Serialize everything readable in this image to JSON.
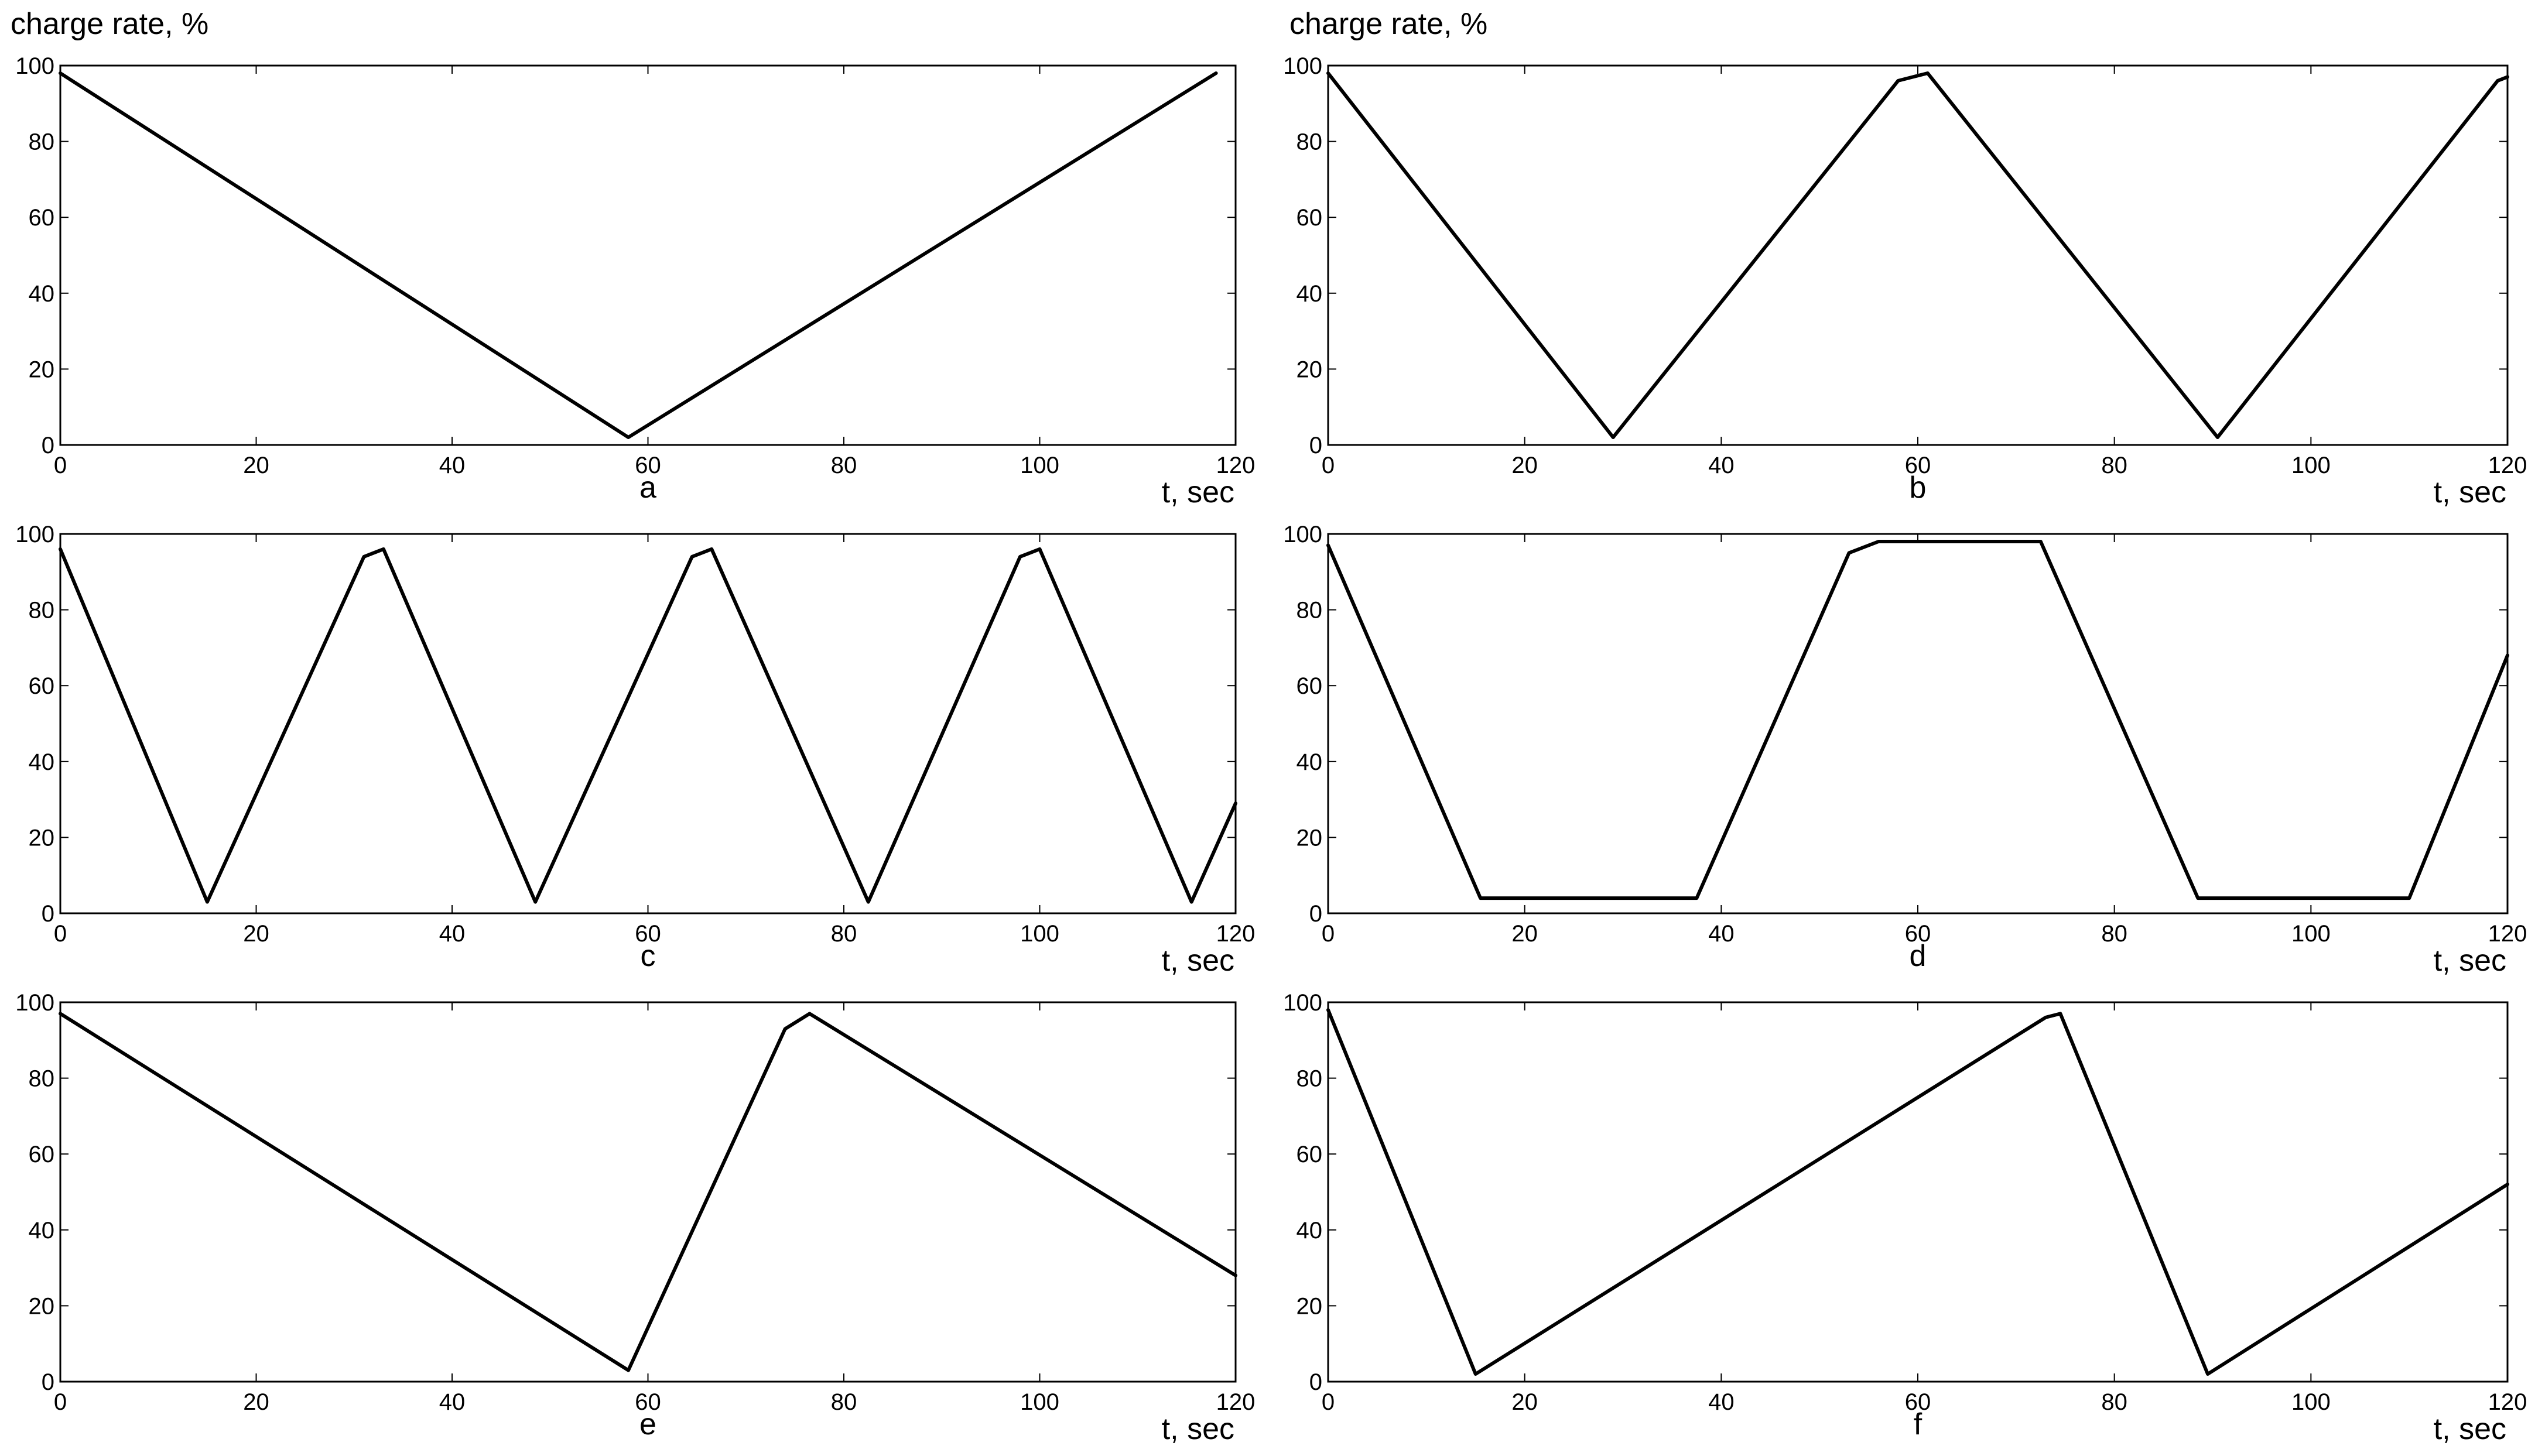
{
  "figure": {
    "ylabel": "charge rate, %",
    "xlabel": "t, sec",
    "line_color": "#000000",
    "frame_color": "#000000",
    "background": "#ffffff"
  },
  "chart_data": [
    {
      "panel": "a",
      "type": "line",
      "xlabel": "t, sec",
      "ylabel": "charge rate, %",
      "xlim": [
        0,
        120
      ],
      "ylim": [
        0,
        100
      ],
      "xticks": [
        0,
        20,
        40,
        60,
        80,
        100,
        120
      ],
      "yticks": [
        0,
        20,
        40,
        60,
        80,
        100
      ],
      "grid": false,
      "series": [
        {
          "x": [
            0,
            58,
            118
          ],
          "y": [
            98,
            2,
            98
          ]
        }
      ]
    },
    {
      "panel": "b",
      "type": "line",
      "xlabel": "t, sec",
      "ylabel": "charge rate, %",
      "xlim": [
        0,
        120
      ],
      "ylim": [
        0,
        100
      ],
      "xticks": [
        0,
        20,
        40,
        60,
        80,
        100,
        120
      ],
      "yticks": [
        0,
        20,
        40,
        60,
        80,
        100
      ],
      "grid": false,
      "series": [
        {
          "x": [
            0,
            29,
            58,
            61,
            90.5,
            119,
            120
          ],
          "y": [
            98,
            2,
            96,
            98,
            2,
            96,
            97
          ]
        }
      ]
    },
    {
      "panel": "c",
      "type": "line",
      "xlabel": "t, sec",
      "ylabel": "charge rate, %",
      "xlim": [
        0,
        120
      ],
      "ylim": [
        0,
        100
      ],
      "xticks": [
        0,
        20,
        40,
        60,
        80,
        100,
        120
      ],
      "yticks": [
        0,
        20,
        40,
        60,
        80,
        100
      ],
      "grid": false,
      "series": [
        {
          "x": [
            0,
            15,
            31,
            33,
            48.5,
            64.5,
            66.5,
            82.5,
            98,
            100,
            115.5,
            120
          ],
          "y": [
            96,
            3,
            94,
            96,
            3,
            94,
            96,
            3,
            94,
            96,
            3,
            29
          ]
        }
      ]
    },
    {
      "panel": "d",
      "type": "line",
      "xlabel": "t, sec",
      "ylabel": "charge rate, %",
      "xlim": [
        0,
        120
      ],
      "ylim": [
        0,
        100
      ],
      "xticks": [
        0,
        20,
        40,
        60,
        80,
        100,
        120
      ],
      "yticks": [
        0,
        20,
        40,
        60,
        80,
        100
      ],
      "grid": false,
      "series": [
        {
          "x": [
            0,
            15.5,
            37.5,
            53,
            56,
            72.5,
            88.5,
            110,
            120
          ],
          "y": [
            97,
            4,
            4,
            95,
            98,
            98,
            4,
            4,
            68
          ]
        }
      ]
    },
    {
      "panel": "e",
      "type": "line",
      "xlabel": "t, sec",
      "ylabel": "charge rate, %",
      "xlim": [
        0,
        120
      ],
      "ylim": [
        0,
        100
      ],
      "xticks": [
        0,
        20,
        40,
        60,
        80,
        100,
        120
      ],
      "yticks": [
        0,
        20,
        40,
        60,
        80,
        100
      ],
      "grid": false,
      "series": [
        {
          "x": [
            0,
            58,
            74,
            76.5,
            120
          ],
          "y": [
            97,
            3,
            93,
            97,
            28
          ]
        }
      ]
    },
    {
      "panel": "f",
      "type": "line",
      "xlabel": "t, sec",
      "ylabel": "charge rate, %",
      "xlim": [
        0,
        120
      ],
      "ylim": [
        0,
        100
      ],
      "xticks": [
        0,
        20,
        40,
        60,
        80,
        100,
        120
      ],
      "yticks": [
        0,
        20,
        40,
        60,
        80,
        100
      ],
      "grid": false,
      "series": [
        {
          "x": [
            0,
            15,
            73,
            74.5,
            89.5,
            120
          ],
          "y": [
            98,
            2,
            96,
            97,
            2,
            52
          ]
        }
      ]
    }
  ]
}
